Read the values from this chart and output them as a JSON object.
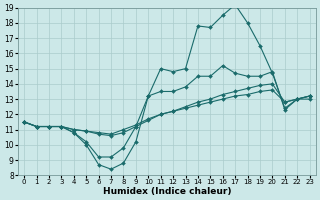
{
  "xlabel": "Humidex (Indice chaleur)",
  "xlim": [
    -0.5,
    23.5
  ],
  "ylim": [
    8,
    19
  ],
  "yticks": [
    8,
    9,
    10,
    11,
    12,
    13,
    14,
    15,
    16,
    17,
    18,
    19
  ],
  "xticks": [
    0,
    1,
    2,
    3,
    4,
    5,
    6,
    7,
    8,
    9,
    10,
    11,
    12,
    13,
    14,
    15,
    16,
    17,
    18,
    19,
    20,
    21,
    22,
    23
  ],
  "bg_color": "#cce8e8",
  "line_color": "#1a6b6b",
  "grid_color": "#aacccc",
  "lines": [
    {
      "x": [
        0,
        1,
        2,
        3,
        4,
        5,
        6,
        7,
        8,
        9,
        10,
        11,
        12,
        13,
        14,
        15,
        16,
        17,
        18,
        19,
        20,
        21,
        22,
        23
      ],
      "y": [
        11.5,
        11.2,
        11.2,
        11.2,
        10.8,
        10.0,
        8.7,
        8.4,
        8.8,
        10.2,
        13.2,
        15.0,
        14.8,
        15.0,
        17.8,
        17.7,
        18.5,
        19.2,
        18.0,
        16.5,
        14.7,
        12.4,
        13.0,
        13.2
      ]
    },
    {
      "x": [
        0,
        1,
        2,
        3,
        4,
        5,
        6,
        7,
        8,
        9,
        10,
        11,
        12,
        13,
        14,
        15,
        16,
        17,
        18,
        19,
        20,
        21,
        22,
        23
      ],
      "y": [
        11.5,
        11.2,
        11.2,
        11.2,
        10.8,
        10.2,
        9.2,
        9.2,
        9.8,
        11.2,
        13.2,
        13.5,
        13.5,
        13.8,
        14.5,
        14.5,
        15.2,
        14.7,
        14.5,
        14.5,
        14.8,
        12.3,
        13.0,
        13.0
      ]
    },
    {
      "x": [
        0,
        1,
        2,
        3,
        4,
        5,
        6,
        7,
        8,
        9,
        10,
        11,
        12,
        13,
        14,
        15,
        16,
        17,
        18,
        19,
        20,
        21,
        22,
        23
      ],
      "y": [
        11.5,
        11.2,
        11.2,
        11.2,
        11.0,
        10.9,
        10.7,
        10.6,
        10.8,
        11.2,
        11.6,
        12.0,
        12.2,
        12.5,
        12.8,
        13.0,
        13.3,
        13.5,
        13.7,
        13.9,
        14.0,
        12.8,
        13.0,
        13.2
      ]
    },
    {
      "x": [
        0,
        1,
        2,
        3,
        4,
        5,
        6,
        7,
        8,
        9,
        10,
        11,
        12,
        13,
        14,
        15,
        16,
        17,
        18,
        19,
        20,
        21,
        22,
        23
      ],
      "y": [
        11.5,
        11.2,
        11.2,
        11.2,
        11.0,
        10.9,
        10.8,
        10.7,
        11.0,
        11.3,
        11.7,
        12.0,
        12.2,
        12.4,
        12.6,
        12.8,
        13.0,
        13.2,
        13.3,
        13.5,
        13.6,
        12.8,
        13.0,
        13.2
      ]
    }
  ]
}
